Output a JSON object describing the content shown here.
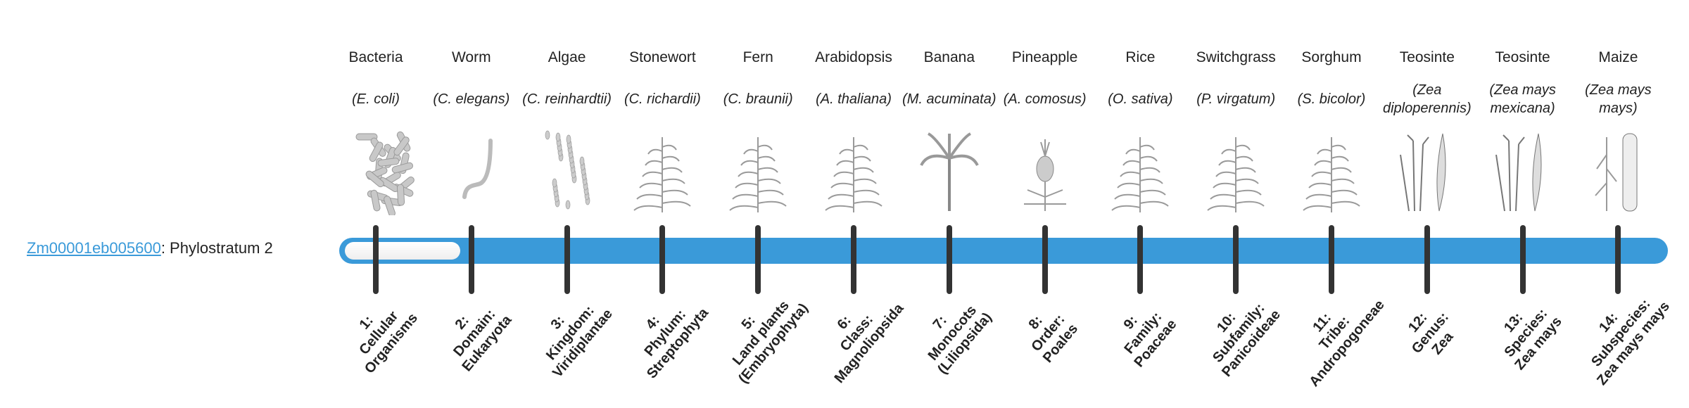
{
  "gene": {
    "id": "Zm00001eb005600",
    "suffix": ": Phylostratum 2",
    "phylostratum": 2,
    "total_strata": 14
  },
  "colors": {
    "accent": "#3a9ad9",
    "tick": "#333333"
  },
  "organisms": [
    {
      "common": "Bacteria",
      "latin": "(E. coli)",
      "icon": "bacteria-icon",
      "stratum": "1: Cellular Organisms"
    },
    {
      "common": "Worm",
      "latin": "(C. elegans)",
      "icon": "worm-icon",
      "stratum": "2: Domain: Eukaryota"
    },
    {
      "common": "Algae",
      "latin": "(C. reinhardtii)",
      "icon": "algae-icon",
      "stratum": "3: Kingdom: Viridiplantae"
    },
    {
      "common": "Stonewort",
      "latin": "(C. richardii)",
      "icon": "stonewort-icon",
      "stratum": "4: Phylum: Streptophyta"
    },
    {
      "common": "Fern",
      "latin": "(C. braunii)",
      "icon": "fern-icon",
      "stratum": "5: Land plants (Embryophyta)"
    },
    {
      "common": "Arabidopsis",
      "latin": "(A. thaliana)",
      "icon": "arabidopsis-icon",
      "stratum": "6: Class: Magnoliopsida"
    },
    {
      "common": "Banana",
      "latin": "(M. acuminata)",
      "icon": "banana-icon",
      "stratum": "7: Monocots (Liliopsida)"
    },
    {
      "common": "Pineapple",
      "latin": "(A. comosus)",
      "icon": "pineapple-icon",
      "stratum": "8: Order: Poales"
    },
    {
      "common": "Rice",
      "latin": "(O. sativa)",
      "icon": "rice-icon",
      "stratum": "9: Family: Poaceae"
    },
    {
      "common": "Switchgrass",
      "latin": "(P. virgatum)",
      "icon": "switchgrass-icon",
      "stratum": "10: Subfamily: Panicoideae"
    },
    {
      "common": "Sorghum",
      "latin": "(S. bicolor)",
      "icon": "sorghum-icon",
      "stratum": "11: Tribe: Andropogoneae"
    },
    {
      "common": "Teosinte",
      "latin": "(Zea diploperennis)",
      "icon": "teosinte-icon",
      "stratum": "12: Genus: Zea"
    },
    {
      "common": "Teosinte",
      "latin": "(Zea mays mexicana)",
      "icon": "teosinte-icon",
      "stratum": "13: Species: Zea mays"
    },
    {
      "common": "Maize",
      "latin": "(Zea mays mays)",
      "icon": "maize-icon",
      "stratum": "14: Subspecies: Zea mays mays"
    }
  ]
}
